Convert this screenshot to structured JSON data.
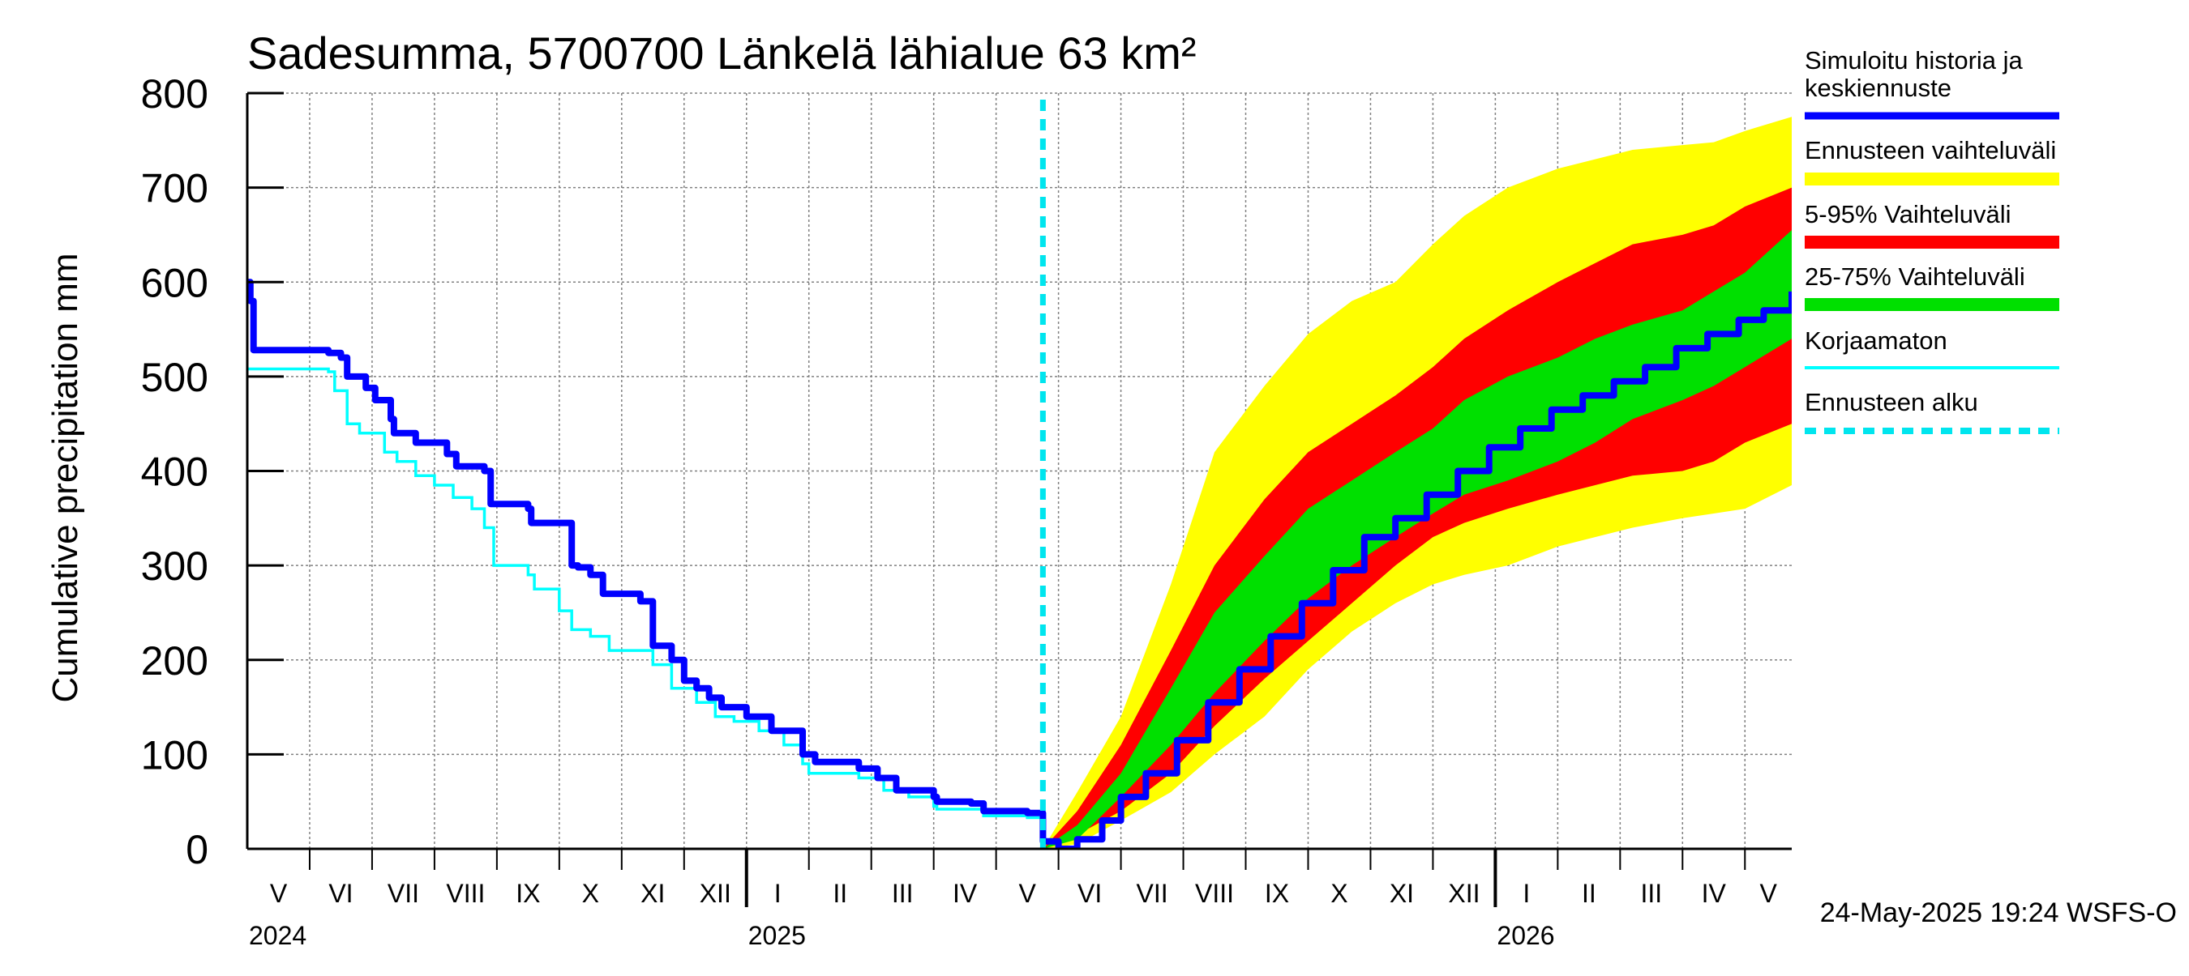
{
  "chart_data": {
    "type": "area",
    "title": "Sadesumma, 5700700 Länkelä lähialue 63 km²",
    "ylabel": "Cumulative precipitation   mm",
    "xlabel": "",
    "ylim": [
      0,
      800
    ],
    "yticks": [
      0,
      100,
      200,
      300,
      400,
      500,
      600,
      700,
      800
    ],
    "x_unit": "months since 2024-05-01",
    "xlim": [
      0,
      24.75
    ],
    "grid": true,
    "month_labels": [
      "V",
      "VI",
      "VII",
      "VIII",
      "IX",
      "X",
      "XI",
      "XII",
      "I",
      "II",
      "III",
      "IV",
      "V",
      "VI",
      "VII",
      "VIII",
      "IX",
      "X",
      "XI",
      "XII",
      "I",
      "II",
      "III",
      "IV",
      "V"
    ],
    "year_labels": [
      {
        "label": "2024",
        "month": 0
      },
      {
        "label": "2025",
        "month": 8
      },
      {
        "label": "2026",
        "month": 20
      }
    ],
    "forecast_start": 12.75,
    "colors": {
      "yellow": "#ffff00",
      "red": "#ff0000",
      "green": "#00e000",
      "blue": "#0000ff",
      "cyan": "#00ffff",
      "dashed": "#00e5ee",
      "grid": "#808080"
    },
    "legend": [
      {
        "label": "Simuloitu historia ja keskiennuste",
        "label_lines": [
          "Simuloitu historia ja",
          "keskiennuste"
        ],
        "color": "#0000ff",
        "style": "thick"
      },
      {
        "label": "Ennusteen vaihteluväli",
        "label_lines": [
          "Ennusteen vaihteluväli"
        ],
        "color": "#ffff00",
        "style": "band"
      },
      {
        "label": "5-95% Vaihteluväli",
        "label_lines": [
          "5-95% Vaihteluväli"
        ],
        "color": "#ff0000",
        "style": "band"
      },
      {
        "label": "25-75% Vaihteluväli",
        "label_lines": [
          "25-75% Vaihteluväli"
        ],
        "color": "#00e000",
        "style": "band"
      },
      {
        "label": "Korjaamaton",
        "label_lines": [
          "Korjaamaton"
        ],
        "color": "#00ffff",
        "style": "thin"
      },
      {
        "label": "Ennusteen alku",
        "label_lines": [
          "Ennusteen alku"
        ],
        "color": "#00e5ee",
        "style": "dashed"
      }
    ],
    "series": [
      {
        "name": "Simuloitu historia ja keskiennuste",
        "x": [
          0,
          0.05,
          0.1,
          1.3,
          1.5,
          1.6,
          1.9,
          2.05,
          2.3,
          2.35,
          2.7,
          3.2,
          3.35,
          3.8,
          3.9,
          4.5,
          4.55,
          5.2,
          5.3,
          5.5,
          5.7,
          6.3,
          6.5,
          6.8,
          7.0,
          7.2,
          7.4,
          7.6,
          8.0,
          8.4,
          8.9,
          9.1,
          9.8,
          10.1,
          10.4,
          11.0,
          11.05,
          11.6,
          11.8,
          12.5,
          12.75,
          13.0,
          13.3,
          13.7,
          14.0,
          14.4,
          14.9,
          15.4,
          15.9,
          16.4,
          16.9,
          17.4,
          17.9,
          18.4,
          18.9,
          19.4,
          19.9,
          20.4,
          20.9,
          21.4,
          21.9,
          22.4,
          22.9,
          23.4,
          23.9,
          24.3,
          24.75
        ],
        "y": [
          600,
          580,
          528,
          525,
          520,
          500,
          488,
          475,
          455,
          440,
          430,
          418,
          405,
          400,
          365,
          360,
          345,
          300,
          298,
          290,
          270,
          262,
          215,
          200,
          178,
          170,
          160,
          150,
          140,
          125,
          100,
          92,
          85,
          75,
          62,
          55,
          50,
          48,
          40,
          38,
          8,
          0,
          10,
          30,
          55,
          80,
          115,
          155,
          190,
          225,
          260,
          295,
          330,
          350,
          375,
          400,
          425,
          445,
          465,
          480,
          495,
          510,
          530,
          545,
          560,
          570,
          590
        ]
      },
      {
        "name": "Korjaamaton",
        "x": [
          0,
          0.1,
          1.3,
          1.4,
          1.6,
          1.8,
          2.2,
          2.4,
          2.7,
          3.0,
          3.3,
          3.6,
          3.8,
          3.95,
          4.5,
          4.6,
          5.0,
          5.2,
          5.5,
          5.8,
          6.5,
          6.8,
          7.2,
          7.5,
          7.8,
          8.2,
          8.6,
          8.9,
          9.0,
          9.8,
          10.2,
          10.6,
          11.0,
          11.05,
          11.8,
          12.5,
          12.75
        ],
        "y": [
          508,
          508,
          505,
          485,
          450,
          440,
          420,
          410,
          395,
          385,
          372,
          360,
          340,
          300,
          290,
          275,
          252,
          232,
          225,
          210,
          195,
          170,
          155,
          140,
          135,
          125,
          110,
          90,
          80,
          75,
          62,
          55,
          45,
          42,
          35,
          33,
          0
        ]
      }
    ],
    "bands": [
      {
        "name": "Ennusteen vaihteluväli",
        "x": [
          12.75,
          13.3,
          14.0,
          14.8,
          15.5,
          16.3,
          17.0,
          17.7,
          18.4,
          19.0,
          19.5,
          20.2,
          21.0,
          21.6,
          22.2,
          23.0,
          23.5,
          24.0,
          24.75
        ],
        "upper": [
          0,
          60,
          140,
          280,
          420,
          490,
          545,
          580,
          600,
          640,
          670,
          700,
          720,
          730,
          740,
          745,
          748,
          760,
          775
        ],
        "lower": [
          0,
          5,
          30,
          60,
          100,
          140,
          190,
          230,
          260,
          280,
          290,
          300,
          320,
          330,
          340,
          350,
          355,
          360,
          385
        ]
      },
      {
        "name": "5-95% Vaihteluväli",
        "x": [
          12.75,
          13.3,
          14.0,
          14.8,
          15.5,
          16.3,
          17.0,
          17.7,
          18.4,
          19.0,
          19.5,
          20.2,
          21.0,
          21.6,
          22.2,
          23.0,
          23.5,
          24.0,
          24.75
        ],
        "upper": [
          0,
          40,
          110,
          210,
          300,
          370,
          420,
          450,
          480,
          510,
          540,
          570,
          600,
          620,
          640,
          650,
          660,
          680,
          700
        ],
        "lower": [
          0,
          15,
          40,
          80,
          130,
          180,
          220,
          260,
          300,
          330,
          345,
          360,
          375,
          385,
          395,
          400,
          410,
          430,
          450
        ]
      },
      {
        "name": "25-75% Vaihteluväli",
        "x": [
          12.75,
          13.3,
          14.0,
          14.8,
          15.5,
          16.3,
          17.0,
          17.7,
          18.4,
          19.0,
          19.5,
          20.2,
          21.0,
          21.6,
          22.2,
          23.0,
          23.5,
          24.0,
          24.75
        ],
        "upper": [
          0,
          25,
          80,
          170,
          250,
          310,
          360,
          390,
          420,
          445,
          475,
          500,
          520,
          540,
          555,
          570,
          590,
          610,
          655
        ],
        "lower": [
          0,
          10,
          55,
          110,
          165,
          220,
          265,
          300,
          330,
          355,
          375,
          390,
          410,
          430,
          455,
          475,
          490,
          510,
          540
        ]
      }
    ],
    "timestamp": "24-May-2025 19:24 WSFS-O"
  }
}
